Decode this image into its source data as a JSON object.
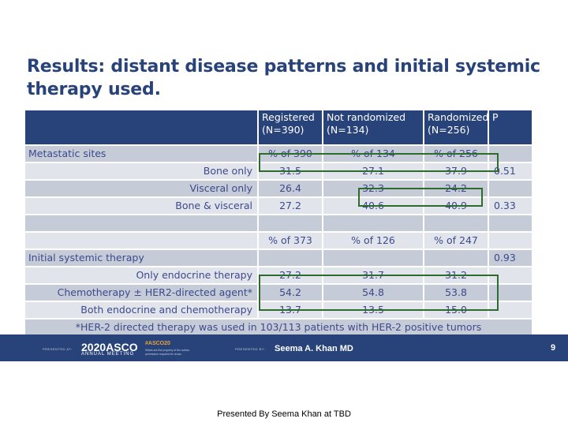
{
  "slide": {
    "title": "Results: distant disease patterns and initial systemic therapy used.",
    "page_number": "9"
  },
  "table": {
    "headers": [
      {
        "line1": "",
        "line2": ""
      },
      {
        "line1": "Registered",
        "line2": "(N=390)"
      },
      {
        "line1": "Not randomized",
        "line2": "(N=134)"
      },
      {
        "line1": "Randomized",
        "line2": "(N=256)"
      },
      {
        "line1": "P",
        "line2": ""
      }
    ],
    "rows": [
      {
        "label": "Metastatic sites",
        "align": "left",
        "values": [
          "% of 390",
          "% of 134",
          "% of 256"
        ],
        "p": ""
      },
      {
        "label": "Bone only",
        "align": "right",
        "values": [
          "31.5",
          "27.1",
          "37.9"
        ],
        "p": "0.51"
      },
      {
        "label": "Visceral only",
        "align": "right",
        "values": [
          "26.4",
          "32.3",
          "24.2"
        ],
        "p": ""
      },
      {
        "label": "Bone & visceral",
        "align": "right",
        "values": [
          "27.2",
          "40.6",
          "40.9"
        ],
        "p": "0.33"
      },
      {
        "label": "",
        "align": "right",
        "values": [
          "",
          "",
          ""
        ],
        "p": ""
      },
      {
        "label": "",
        "align": "right",
        "values": [
          "% of 373",
          "% of 126",
          "% of 247"
        ],
        "p": ""
      },
      {
        "label": "Initial systemic therapy",
        "align": "left",
        "values": [
          "",
          "",
          ""
        ],
        "p": "0.93"
      },
      {
        "label": "Only endocrine therapy",
        "align": "right",
        "values": [
          "27.2",
          "31.7",
          "31.2"
        ],
        "p": ""
      },
      {
        "label": "Chemotherapy ± HER2-directed agent*",
        "align": "right",
        "values": [
          "54.2",
          "54.8",
          "53.8"
        ],
        "p": ""
      },
      {
        "label": "Both endocrine and chemotherapy",
        "align": "right",
        "values": [
          "13.7",
          "13.5",
          "15.0"
        ],
        "p": ""
      }
    ],
    "footnote": "*HER-2 directed therapy was used in 103/113 patients with HER-2 positive tumors"
  },
  "footer": {
    "presented_at": "PRESENTED AT:",
    "asco_year": "2020",
    "asco_brand": "ASCO",
    "asco_sub": "ANNUAL MEETING",
    "hashtag": "#ASCO20",
    "hashtag_line1": "Slides are the property of the author,",
    "hashtag_line2": "permission required for reuse.",
    "presented_by": "PRESENTED BY:",
    "presenter": "Seema A. Khan MD"
  },
  "caption": "Presented By Seema Khan at TBD",
  "colors": {
    "primary": "#28437a",
    "row_dark": "#c6cbd8",
    "row_light": "#e2e4eb",
    "highlight": "#2f6b2f",
    "accent": "#e8a23c"
  }
}
